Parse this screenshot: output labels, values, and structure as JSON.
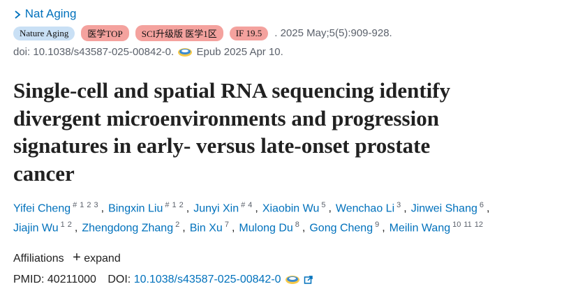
{
  "journal": {
    "name": "Nat Aging",
    "badges": [
      {
        "text": "Nature Aging",
        "kind": "journal"
      },
      {
        "text": "医学TOP",
        "kind": "rank"
      },
      {
        "text": "SCI升级版 医学1区",
        "kind": "rank"
      },
      {
        "text": "IF 19.5",
        "kind": "rank"
      }
    ],
    "citation": ". 2025 May;5(5):909-928.",
    "doi": "doi: 10.1038/s43587-025-00842-0.",
    "epub": "Epub 2025 Apr 10."
  },
  "title_lines": [
    "Single-cell and spatial RNA sequencing identify",
    "divergent microenvironments and progression",
    "signatures in early- versus late-onset prostate",
    "cancer"
  ],
  "separator": ",",
  "author_rows": [
    [
      {
        "name": "Yifei Cheng",
        "sups": [
          "#",
          "1",
          "2",
          "3"
        ]
      },
      {
        "name": "Bingxin Liu",
        "sups": [
          "#",
          "1",
          "2"
        ]
      },
      {
        "name": "Junyi Xin",
        "sups": [
          "#",
          "4"
        ]
      },
      {
        "name": "Xiaobin Wu",
        "sups": [
          "5"
        ]
      },
      {
        "name": "Wenchao Li",
        "sups": [
          "3"
        ]
      },
      {
        "name": "Jinwei Shang",
        "sups": [
          "6"
        ]
      }
    ],
    [
      {
        "name": "Jiajin Wu",
        "sups": [
          "1",
          "2"
        ]
      },
      {
        "name": "Zhengdong Zhang",
        "sups": [
          "2"
        ]
      },
      {
        "name": "Bin Xu",
        "sups": [
          "7"
        ]
      },
      {
        "name": "Mulong Du",
        "sups": [
          "8"
        ]
      },
      {
        "name": "Gong Cheng",
        "sups": [
          "9"
        ]
      },
      {
        "name": "Meilin Wang",
        "sups": [
          "10",
          "11",
          "12"
        ]
      }
    ]
  ],
  "affiliations": {
    "label": "Affiliations",
    "toggle": "+",
    "action": "expand"
  },
  "ids": {
    "pmid_label": "PMID:",
    "pmid": "40211000",
    "doi_label": "DOI:",
    "doi": "10.1038/s43587-025-00842-0"
  }
}
